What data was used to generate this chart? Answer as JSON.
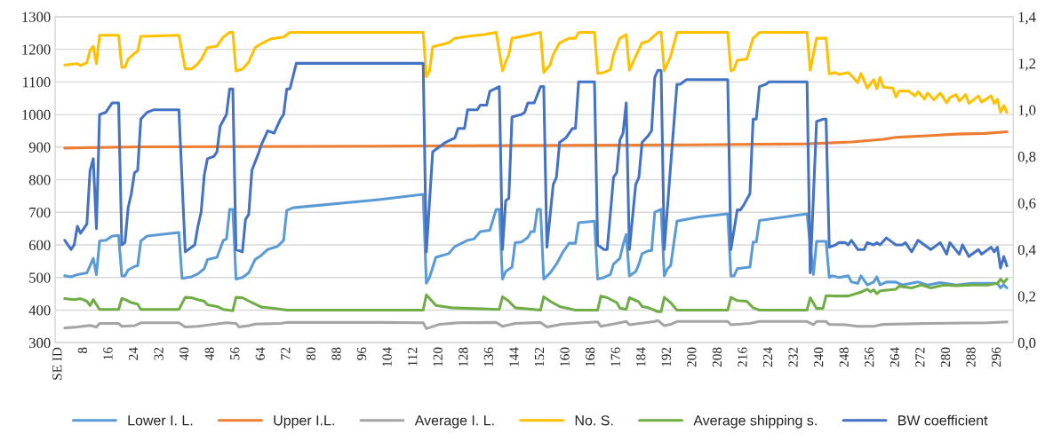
{
  "chart_data": {
    "type": "line",
    "xlim": [
      -1,
      301
    ],
    "xticks": [
      {
        "value": 0,
        "label": "SE ID"
      },
      8,
      16,
      24,
      32,
      40,
      48,
      56,
      64,
      72,
      80,
      88,
      96,
      104,
      112,
      120,
      128,
      136,
      144,
      152,
      160,
      168,
      176,
      184,
      192,
      200,
      208,
      216,
      224,
      232,
      240,
      248,
      256,
      264,
      272,
      280,
      288,
      296
    ],
    "ylim": [
      300,
      1300
    ],
    "yticks": [
      300,
      400,
      500,
      600,
      700,
      800,
      900,
      1000,
      1100,
      1200,
      1300
    ],
    "y2lim": [
      0,
      1.4
    ],
    "y2ticks": [
      {
        "value": 0,
        "label": "0,0"
      },
      {
        "value": 0.2,
        "label": "0,2"
      },
      {
        "value": 0.4,
        "label": "0,4"
      },
      {
        "value": 0.6,
        "label": "0,6"
      },
      {
        "value": 0.8,
        "label": "0,8"
      },
      {
        "value": 1.0,
        "label": "1,0"
      },
      {
        "value": 1.2,
        "label": "1,2"
      },
      {
        "value": 1.4,
        "label": "1,4"
      }
    ],
    "grid": "y",
    "legend": "bottom",
    "marker": "none",
    "line_style": "solid",
    "series": [
      {
        "name": "Lower I. L.",
        "color": "#5b9bd5",
        "x": [
          2,
          4,
          6,
          9,
          10,
          11,
          12,
          13,
          15,
          17,
          19,
          20,
          21,
          22,
          24,
          25,
          26,
          28,
          38,
          39,
          42,
          44,
          46,
          47,
          50,
          52,
          53,
          54,
          55,
          56,
          58,
          60,
          62,
          64,
          66,
          69,
          71,
          72,
          74,
          101,
          115,
          116,
          117,
          119,
          123,
          125,
          129,
          131,
          133,
          136,
          138,
          139,
          140,
          141,
          143,
          144,
          146,
          148,
          149,
          150,
          151,
          152,
          153,
          155,
          157,
          159,
          161,
          163,
          164,
          169,
          170,
          172,
          174,
          175,
          177,
          178,
          179,
          180,
          182,
          183,
          184,
          186,
          187,
          188,
          190,
          191,
          192,
          193,
          195,
          202,
          211,
          212,
          213,
          214,
          218,
          219,
          220,
          221,
          236,
          238,
          239,
          242,
          243,
          244,
          246,
          249,
          250,
          252,
          253,
          255,
          257,
          258,
          259,
          261,
          264,
          266,
          271,
          274,
          278,
          283,
          288,
          293,
          296,
          297,
          298,
          299
        ],
        "values": [
          505,
          502,
          509,
          514,
          536,
          559,
          509,
          612,
          614,
          627,
          629,
          505,
          505,
          523,
          534,
          536,
          612,
          627,
          638,
          497,
          502,
          511,
          527,
          555,
          562,
          614,
          618,
          709,
          709,
          495,
          500,
          514,
          555,
          568,
          586,
          595,
          614,
          706,
          714,
          739,
          755,
          482,
          500,
          562,
          573,
          595,
          614,
          618,
          641,
          645,
          709,
          709,
          495,
          518,
          532,
          607,
          609,
          623,
          641,
          641,
          709,
          709,
          495,
          514,
          541,
          577,
          605,
          605,
          668,
          673,
          495,
          500,
          509,
          541,
          559,
          600,
          632,
          505,
          518,
          541,
          573,
          582,
          582,
          700,
          709,
          505,
          527,
          536,
          673,
          686,
          695,
          505,
          505,
          527,
          532,
          609,
          609,
          675,
          695,
          509,
          611,
          611,
          500,
          505,
          500,
          505,
          486,
          482,
          505,
          477,
          486,
          502,
          477,
          486,
          486,
          477,
          486,
          477,
          484,
          477,
          482,
          482,
          482,
          468,
          477,
          468
        ]
      },
      {
        "name": "Upper I.L.",
        "color": "#ed7d31",
        "x": [
          2,
          25,
          101,
          199,
          236,
          250,
          260,
          264,
          274,
          283,
          292,
          299
        ],
        "values": [
          897,
          901,
          903,
          907,
          910,
          916,
          924,
          930,
          935,
          940,
          942,
          947
        ]
      },
      {
        "name": "Average I. L.",
        "color": "#a5a5a5",
        "x": [
          2,
          6,
          10,
          12,
          13,
          19,
          20,
          24,
          26,
          38,
          40,
          44,
          49,
          53,
          56,
          57,
          60,
          62,
          70,
          72,
          101,
          115,
          116,
          120,
          126,
          138,
          140,
          144,
          152,
          154,
          159,
          170,
          171,
          176,
          179,
          180,
          188,
          189,
          191,
          193,
          195,
          202,
          211,
          212,
          218,
          221,
          236,
          238,
          239,
          242,
          243,
          248,
          252,
          257,
          260,
          274,
          293,
          299
        ],
        "values": [
          345,
          348,
          353,
          348,
          359,
          359,
          350,
          352,
          361,
          361,
          348,
          350,
          356,
          361,
          359,
          348,
          352,
          357,
          359,
          362,
          362,
          361,
          343,
          356,
          361,
          362,
          350,
          359,
          362,
          348,
          357,
          364,
          350,
          359,
          365,
          355,
          365,
          368,
          352,
          356,
          365,
          365,
          365,
          355,
          359,
          365,
          365,
          355,
          365,
          365,
          356,
          355,
          350,
          350,
          356,
          359,
          361,
          364
        ]
      },
      {
        "name": "No. S.",
        "color": "#ffc000",
        "x": [
          2,
          6,
          7,
          9,
          10,
          11,
          12,
          13,
          19,
          20,
          21,
          22,
          24,
          25,
          26,
          38,
          40,
          42,
          44,
          45,
          47,
          50,
          52,
          54,
          55,
          56,
          58,
          60,
          62,
          64,
          67,
          71,
          73,
          115,
          116,
          117,
          118,
          123,
          125,
          129,
          134,
          138,
          140,
          141,
          142,
          143,
          148,
          152,
          153,
          155,
          156,
          158,
          161,
          163,
          164,
          169,
          170,
          172,
          174,
          175,
          177,
          179,
          180,
          182,
          184,
          186,
          189,
          190,
          191,
          193,
          195,
          211,
          212,
          213,
          214,
          217,
          219,
          221,
          236,
          237,
          239,
          242,
          243,
          245,
          246,
          249,
          252,
          253,
          255,
          257,
          258,
          259,
          260,
          263,
          264,
          265,
          268,
          270,
          271,
          273,
          274,
          276,
          278,
          280,
          281,
          283,
          284,
          286,
          287,
          290,
          291,
          294,
          295,
          296,
          297,
          298,
          299
        ],
        "values": [
          1152,
          1156,
          1150,
          1159,
          1197,
          1209,
          1156,
          1243,
          1243,
          1145,
          1145,
          1170,
          1188,
          1194,
          1240,
          1243,
          1140,
          1140,
          1156,
          1169,
          1205,
          1210,
          1238,
          1252,
          1252,
          1134,
          1139,
          1161,
          1205,
          1218,
          1232,
          1238,
          1252,
          1252,
          1116,
          1134,
          1208,
          1220,
          1234,
          1240,
          1245,
          1252,
          1134,
          1161,
          1184,
          1234,
          1243,
          1252,
          1129,
          1152,
          1184,
          1220,
          1234,
          1234,
          1252,
          1252,
          1126,
          1129,
          1138,
          1184,
          1234,
          1245,
          1136,
          1179,
          1220,
          1225,
          1252,
          1252,
          1134,
          1179,
          1252,
          1252,
          1134,
          1139,
          1166,
          1170,
          1234,
          1252,
          1252,
          1136,
          1234,
          1234,
          1125,
          1129,
          1123,
          1129,
          1098,
          1126,
          1081,
          1107,
          1079,
          1114,
          1084,
          1081,
          1054,
          1072,
          1072,
          1057,
          1070,
          1047,
          1066,
          1045,
          1066,
          1036,
          1052,
          1061,
          1041,
          1061,
          1034,
          1057,
          1038,
          1057,
          1034,
          1047,
          1007,
          1027,
          1007
        ]
      },
      {
        "name": "Average shipping s.",
        "color": "#70ad47",
        "x": [
          2,
          5,
          7,
          9,
          10,
          11,
          13,
          19,
          20,
          21,
          23,
          25,
          26,
          38,
          40,
          42,
          44,
          46,
          47,
          50,
          52,
          55,
          56,
          58,
          61,
          64,
          68,
          72,
          101,
          115,
          116,
          117,
          119,
          124,
          139,
          140,
          142,
          144,
          152,
          153,
          155,
          158,
          163,
          170,
          171,
          173,
          176,
          177,
          179,
          180,
          183,
          184,
          186,
          189,
          190,
          191,
          193,
          195,
          202,
          211,
          212,
          214,
          217,
          219,
          221,
          236,
          237,
          239,
          241,
          242,
          245,
          249,
          253,
          255,
          256,
          257,
          258,
          259,
          264,
          265,
          269,
          272,
          275,
          279,
          283,
          288,
          293,
          296,
          297,
          298,
          299
        ],
        "values": [
          435,
          432,
          435,
          427,
          414,
          432,
          402,
          402,
          436,
          432,
          423,
          418,
          402,
          402,
          439,
          438,
          432,
          427,
          416,
          411,
          402,
          398,
          439,
          438,
          423,
          409,
          405,
          400,
          400,
          400,
          447,
          436,
          414,
          407,
          402,
          441,
          427,
          407,
          400,
          441,
          427,
          411,
          400,
          400,
          443,
          438,
          423,
          406,
          402,
          438,
          425,
          411,
          407,
          395,
          395,
          439,
          423,
          400,
          400,
          400,
          439,
          429,
          427,
          407,
          400,
          400,
          438,
          405,
          405,
          444,
          443,
          443,
          455,
          464,
          456,
          462,
          450,
          459,
          464,
          473,
          468,
          477,
          468,
          477,
          475,
          477,
          477,
          482,
          495,
          484,
          495
        ]
      },
      {
        "name": "BW coefficient",
        "color": "#4472c4",
        "axis": "y2",
        "x": [
          2,
          4,
          5,
          6,
          7,
          8,
          9,
          10,
          11,
          12,
          13,
          15,
          17,
          19,
          20,
          21,
          22,
          23,
          24,
          25,
          26,
          28,
          30,
          38,
          40,
          41,
          43,
          44,
          45,
          46,
          47,
          49,
          50,
          51,
          53,
          54,
          55,
          56,
          58,
          59,
          60,
          61,
          63,
          64,
          66,
          68,
          70,
          71,
          72,
          73,
          75,
          115,
          116,
          118,
          120,
          122,
          125,
          126,
          128,
          129,
          132,
          133,
          135,
          136,
          139,
          140,
          141,
          142,
          143,
          146,
          147,
          148,
          150,
          152,
          153,
          154,
          156,
          157,
          158,
          160,
          162,
          163,
          164,
          169,
          170,
          172,
          173,
          175,
          176,
          177,
          178,
          179,
          180,
          182,
          183,
          184,
          186,
          187,
          188,
          189,
          190,
          191,
          193,
          195,
          196,
          198,
          211,
          212,
          214,
          215,
          216,
          218,
          219,
          220,
          221,
          223,
          224,
          236,
          237,
          239,
          241,
          242,
          243,
          245,
          246,
          248,
          249,
          250,
          252,
          254,
          255,
          257,
          258,
          259,
          261,
          263,
          264,
          266,
          267,
          269,
          271,
          273,
          275,
          278,
          280,
          281,
          284,
          285,
          287,
          290,
          291,
          294,
          295,
          296,
          297,
          298,
          299
        ],
        "values": [
          0.44,
          0.4,
          0.42,
          0.5,
          0.47,
          0.49,
          0.51,
          0.74,
          0.79,
          0.49,
          0.98,
          0.99,
          1.03,
          1.03,
          0.42,
          0.43,
          0.58,
          0.64,
          0.73,
          0.74,
          0.96,
          0.99,
          1.0,
          1.0,
          0.39,
          0.4,
          0.42,
          0.5,
          0.56,
          0.72,
          0.79,
          0.8,
          0.82,
          0.93,
          0.98,
          1.09,
          1.09,
          0.4,
          0.39,
          0.53,
          0.55,
          0.74,
          0.81,
          0.85,
          0.91,
          0.9,
          0.96,
          0.98,
          1.09,
          1.09,
          1.2,
          1.2,
          0.39,
          0.82,
          0.84,
          0.86,
          0.88,
          0.92,
          0.92,
          1.0,
          1.0,
          1.02,
          1.02,
          1.08,
          1.1,
          0.4,
          0.61,
          0.62,
          0.97,
          0.98,
          0.99,
          1.03,
          1.03,
          1.1,
          1.1,
          0.41,
          0.68,
          0.71,
          0.86,
          0.88,
          0.92,
          0.92,
          1.12,
          1.12,
          0.42,
          0.4,
          0.4,
          0.71,
          0.73,
          0.87,
          0.9,
          1.03,
          0.4,
          0.68,
          0.71,
          0.86,
          0.89,
          0.91,
          1.14,
          1.17,
          1.17,
          0.4,
          0.76,
          1.11,
          1.11,
          1.13,
          1.13,
          0.4,
          0.57,
          0.57,
          0.59,
          0.64,
          0.96,
          0.96,
          1.1,
          1.11,
          1.12,
          1.12,
          0.3,
          0.95,
          0.96,
          0.96,
          0.41,
          0.42,
          0.43,
          0.43,
          0.42,
          0.44,
          0.4,
          0.4,
          0.43,
          0.42,
          0.43,
          0.42,
          0.45,
          0.43,
          0.42,
          0.42,
          0.43,
          0.39,
          0.44,
          0.42,
          0.4,
          0.43,
          0.38,
          0.43,
          0.38,
          0.42,
          0.37,
          0.4,
          0.38,
          0.41,
          0.39,
          0.41,
          0.32,
          0.37,
          0.33
        ]
      }
    ]
  }
}
